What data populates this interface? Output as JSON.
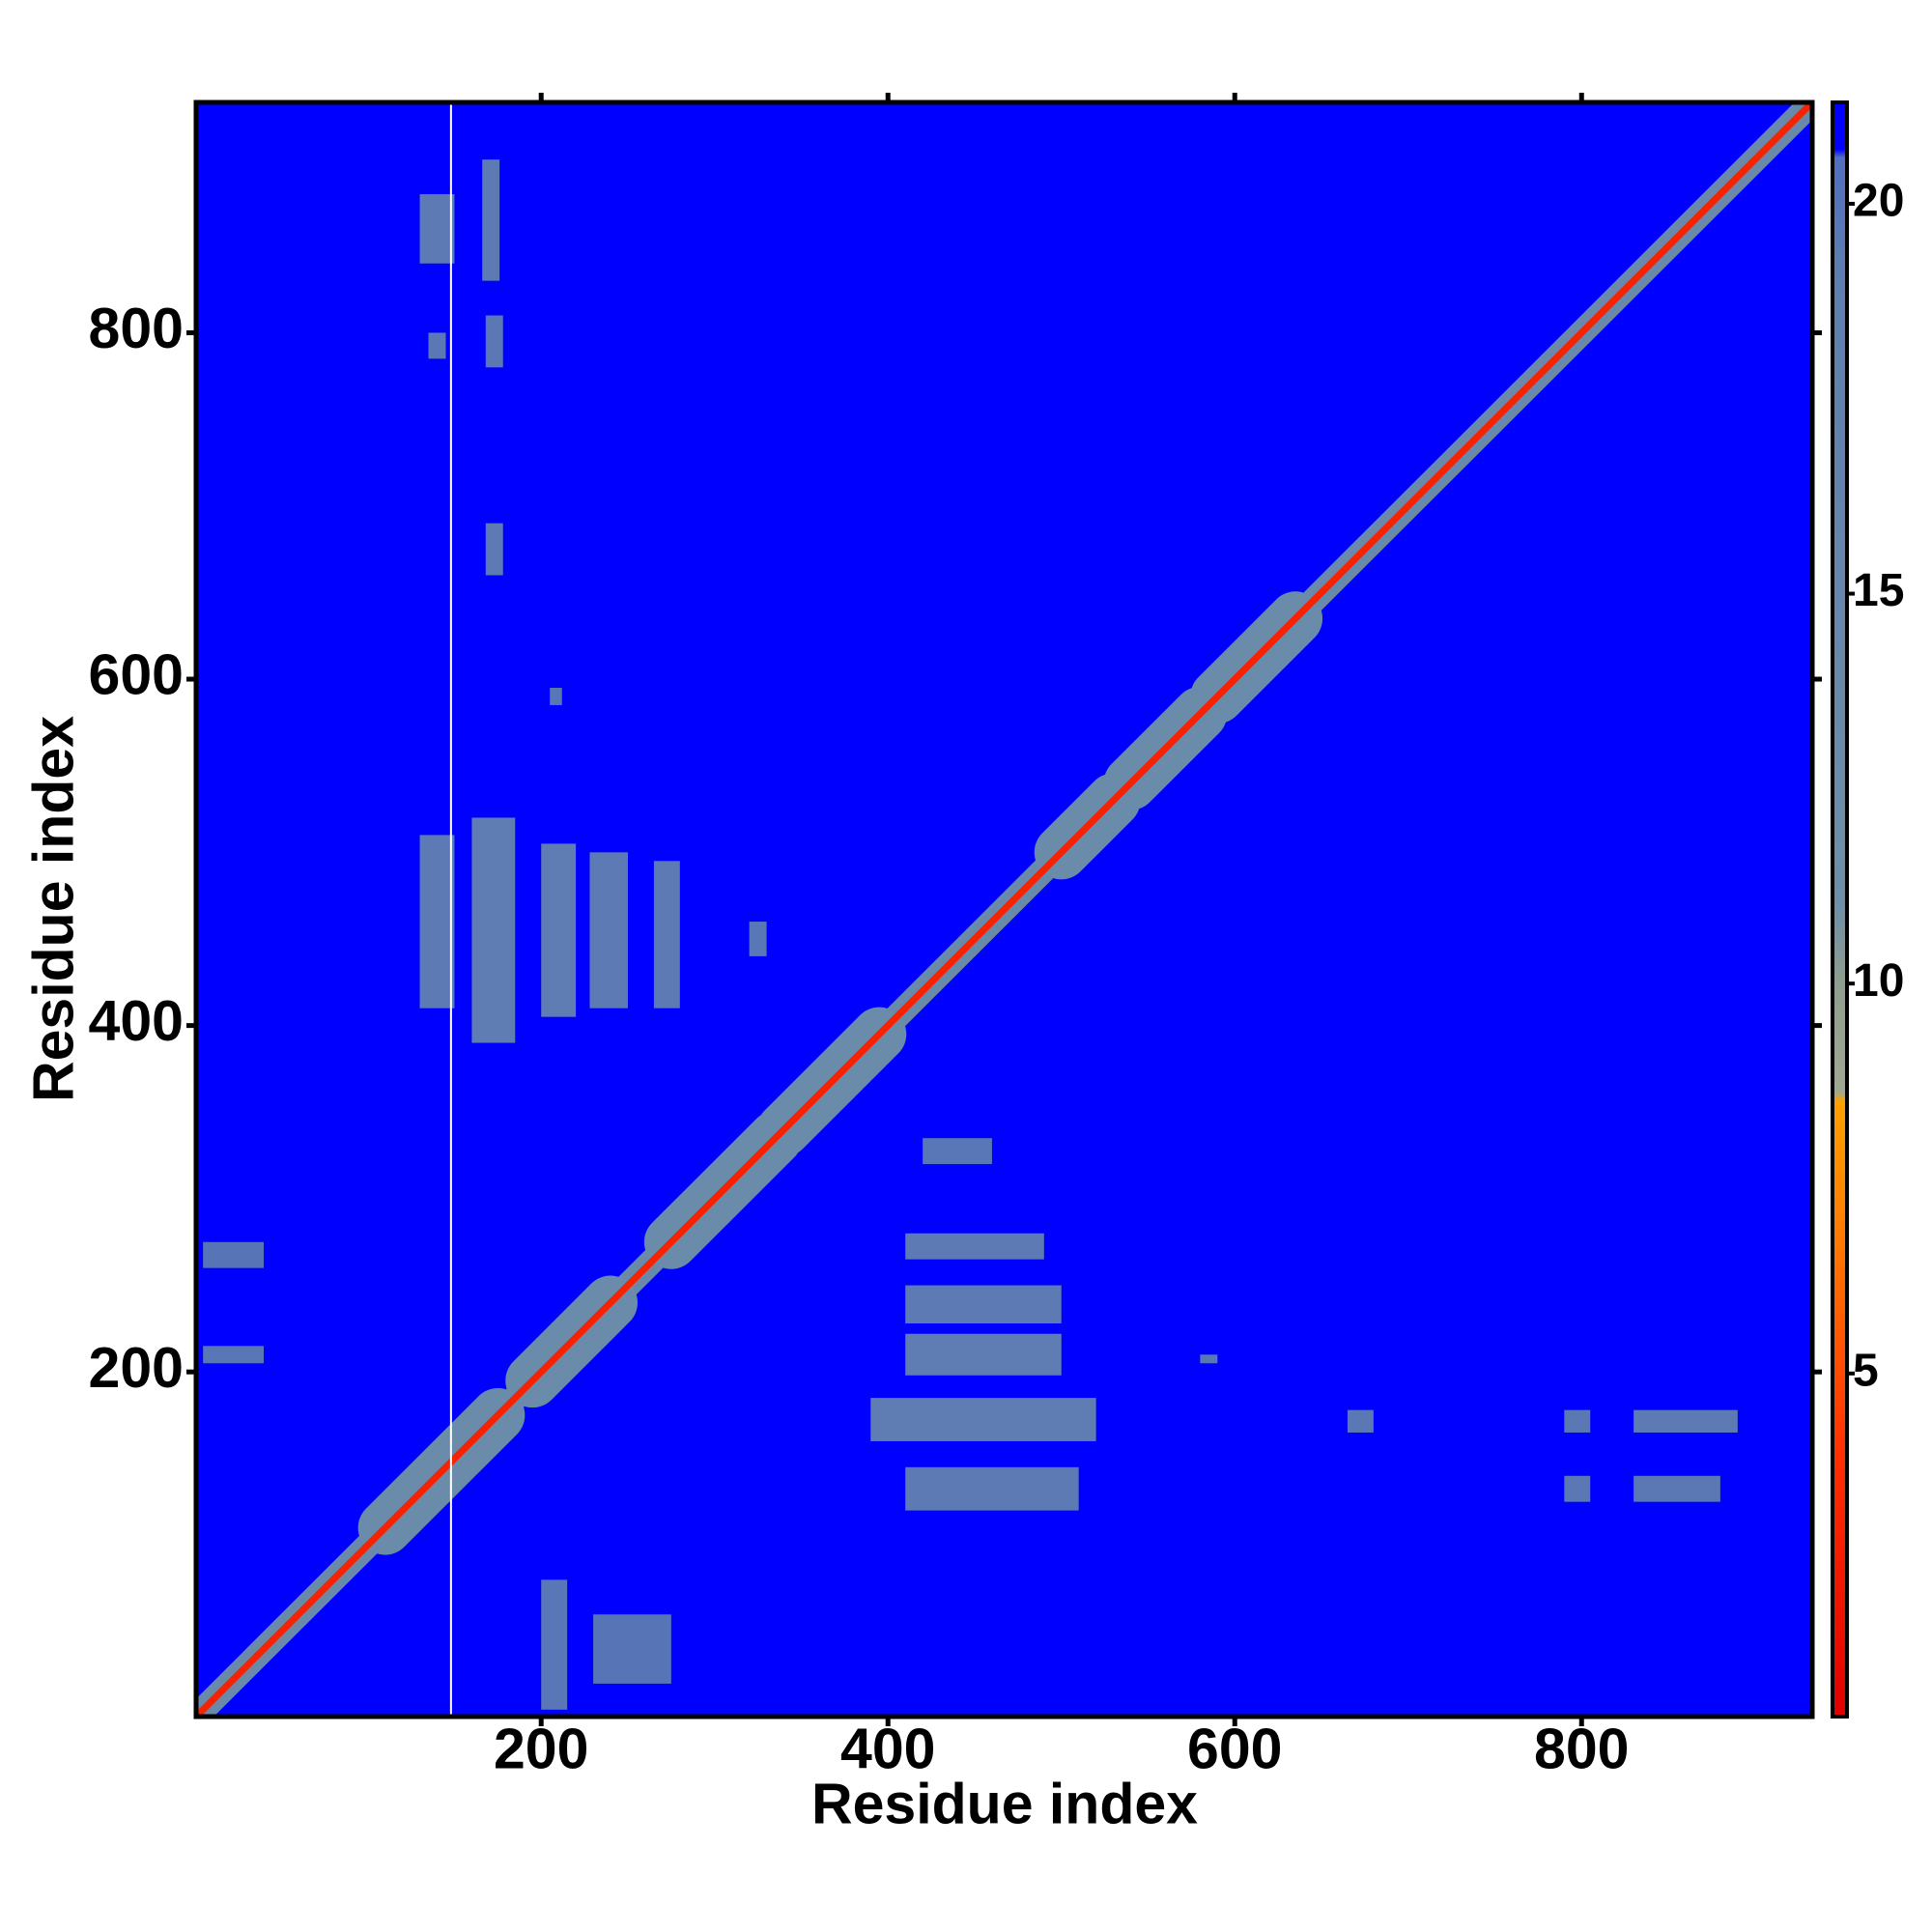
{
  "chart_data": {
    "type": "contact_map",
    "xlabel": "Residue index",
    "ylabel": "Residue index",
    "xlim": [
      1,
      933
    ],
    "ylim": [
      1,
      933
    ],
    "xticks": [
      200,
      400,
      600,
      800
    ],
    "yticks": [
      200,
      400,
      600,
      800
    ],
    "colorbar_lim": [
      0.6,
      21.3
    ],
    "colorbar_ticks": [
      5,
      10,
      15,
      20
    ],
    "colorscale": [
      {
        "value": 0.6,
        "color": "#e00000"
      },
      {
        "value": 4,
        "color": "#ff3000"
      },
      {
        "value": 7,
        "color": "#ff8000"
      },
      {
        "value": 8.5,
        "color": "#ffa000"
      },
      {
        "value": 8.6,
        "color": "#a0a890"
      },
      {
        "value": 10,
        "color": "#8f9f8f"
      },
      {
        "value": 11,
        "color": "#6f8fa8"
      },
      {
        "value": 19,
        "color": "#5f7fb0"
      },
      {
        "value": 20.6,
        "color": "#5070c0"
      },
      {
        "value": 20.7,
        "color": "#0000ff"
      },
      {
        "value": 21.3,
        "color": "#0000ff"
      }
    ],
    "missing_residues": [
      148
    ],
    "diagonal": [
      {
        "from": 1,
        "to": 933,
        "value": 14
      },
      {
        "from": 110,
        "to": 175,
        "value": 13
      },
      {
        "from": 195,
        "to": 240,
        "value": 13
      },
      {
        "from": 275,
        "to": 335,
        "value": 13
      },
      {
        "from": 340,
        "to": 395,
        "value": 13
      },
      {
        "from": 500,
        "to": 530,
        "value": 13
      },
      {
        "from": 540,
        "to": 580,
        "value": 13
      },
      {
        "from": 590,
        "to": 635,
        "value": 13
      },
      {
        "from": 1,
        "to": 933,
        "value": 3
      }
    ],
    "regions": [
      {
        "x": [
          130,
          150
        ],
        "y": [
          840,
          880
        ],
        "value": 15
      },
      {
        "x": [
          166,
          176
        ],
        "y": [
          830,
          900
        ],
        "value": 15
      },
      {
        "x": [
          135,
          145
        ],
        "y": [
          785,
          800
        ],
        "value": 16
      },
      {
        "x": [
          168,
          178
        ],
        "y": [
          780,
          810
        ],
        "value": 16
      },
      {
        "x": [
          168,
          178
        ],
        "y": [
          660,
          690
        ],
        "value": 15
      },
      {
        "x": [
          130,
          150
        ],
        "y": [
          410,
          510
        ],
        "value": 15
      },
      {
        "x": [
          160,
          185
        ],
        "y": [
          390,
          520
        ],
        "value": 14
      },
      {
        "x": [
          200,
          220
        ],
        "y": [
          405,
          505
        ],
        "value": 14
      },
      {
        "x": [
          228,
          250
        ],
        "y": [
          410,
          500
        ],
        "value": 15
      },
      {
        "x": [
          265,
          280
        ],
        "y": [
          410,
          495
        ],
        "value": 15
      },
      {
        "x": [
          320,
          330
        ],
        "y": [
          440,
          460
        ],
        "value": 17
      },
      {
        "x": [
          205,
          212
        ],
        "y": [
          585,
          595
        ],
        "value": 17
      },
      {
        "x": [
          5,
          40
        ],
        "y": [
          205,
          215
        ],
        "value": 17
      },
      {
        "x": [
          5,
          40
        ],
        "y": [
          260,
          275
        ],
        "value": 18
      },
      {
        "x": [
          200,
          215
        ],
        "y": [
          5,
          80
        ],
        "value": 17
      },
      {
        "x": [
          230,
          275
        ],
        "y": [
          20,
          60
        ],
        "value": 18
      },
      {
        "x": [
          410,
          500
        ],
        "y": [
          198,
          222
        ],
        "value": 14
      },
      {
        "x": [
          410,
          500
        ],
        "y": [
          228,
          250
        ],
        "value": 15
      },
      {
        "x": [
          410,
          490
        ],
        "y": [
          265,
          280
        ],
        "value": 15
      },
      {
        "x": [
          390,
          520
        ],
        "y": [
          160,
          185
        ],
        "value": 14
      },
      {
        "x": [
          410,
          510
        ],
        "y": [
          120,
          145
        ],
        "value": 15
      },
      {
        "x": [
          420,
          460
        ],
        "y": [
          320,
          335
        ],
        "value": 17
      },
      {
        "x": [
          665,
          680
        ],
        "y": [
          165,
          178
        ],
        "value": 16
      },
      {
        "x": [
          790,
          805
        ],
        "y": [
          165,
          178
        ],
        "value": 16
      },
      {
        "x": [
          830,
          890
        ],
        "y": [
          165,
          178
        ],
        "value": 15
      },
      {
        "x": [
          830,
          880
        ],
        "y": [
          125,
          140
        ],
        "value": 16
      },
      {
        "x": [
          790,
          805
        ],
        "y": [
          125,
          140
        ],
        "value": 16
      },
      {
        "x": [
          580,
          590
        ],
        "y": [
          205,
          210
        ],
        "value": 17
      }
    ]
  }
}
